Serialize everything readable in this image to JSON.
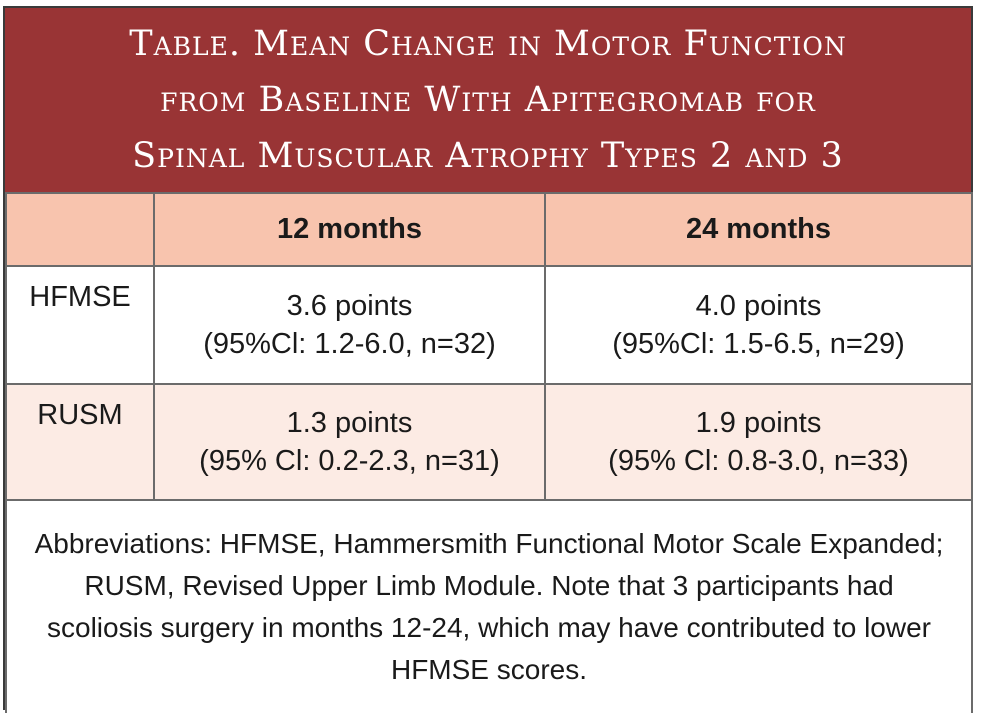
{
  "title": {
    "line1": "Table. Mean Change in Motor Function",
    "line2": "from Baseline With Apitegromab for",
    "line3": "Spinal Muscular Atrophy Types 2 and 3"
  },
  "table": {
    "headers": [
      "",
      "12 months",
      "24 months"
    ],
    "rows": [
      {
        "label": "HFMSE",
        "cells": [
          {
            "value": "3.6 points",
            "ci": "(95%Cl: 1.2-6.0, n=32)"
          },
          {
            "value": "4.0 points",
            "ci": "(95%Cl: 1.5-6.5, n=29)"
          }
        ]
      },
      {
        "label": "RUSM",
        "cells": [
          {
            "value": "1.3 points",
            "ci": "(95% Cl: 0.2-2.3, n=31)"
          },
          {
            "value": "1.9 points",
            "ci": "(95% Cl: 0.8-3.0, n=33)"
          }
        ]
      }
    ],
    "footnote": "Abbreviations: HFMSE, Hammersmith Functional Motor Scale Expanded; RUSM, Revised Upper Limb Module. Note that 3 participants had scoliosis surgery in months 12-24, which may have contributed to lower HFMSE scores."
  },
  "colors": {
    "title_background": "#993435",
    "header_background": "#f8c4ae",
    "alt_row_background": "#fcebe4"
  }
}
